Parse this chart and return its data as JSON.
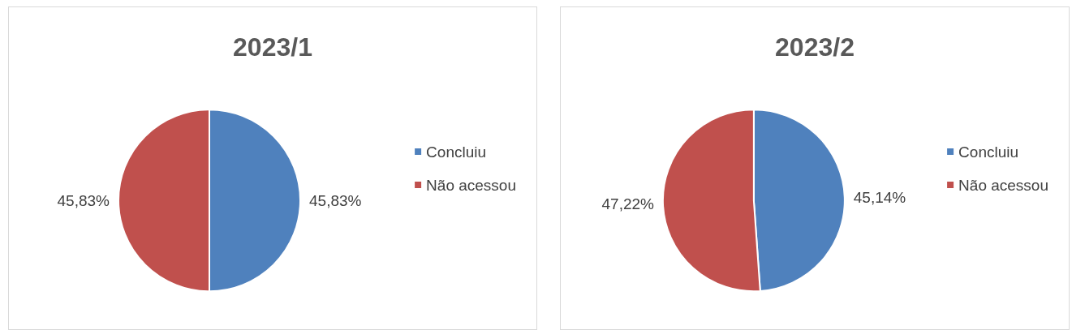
{
  "chart_data": [
    {
      "type": "pie",
      "title": "2023/1",
      "categories": [
        "Concluiu",
        "Não acessou"
      ],
      "values": [
        45.83,
        45.83
      ],
      "colors": [
        "#4f81bd",
        "#c0504d"
      ],
      "value_labels": [
        "45,83%",
        "45,83%"
      ],
      "legend": "right"
    },
    {
      "type": "pie",
      "title": "2023/2",
      "categories": [
        "Concluiu",
        "Não acessou"
      ],
      "values": [
        45.14,
        47.22
      ],
      "colors": [
        "#4f81bd",
        "#c0504d"
      ],
      "value_labels": [
        "45,14%",
        "47,22%"
      ],
      "legend": "right"
    }
  ]
}
